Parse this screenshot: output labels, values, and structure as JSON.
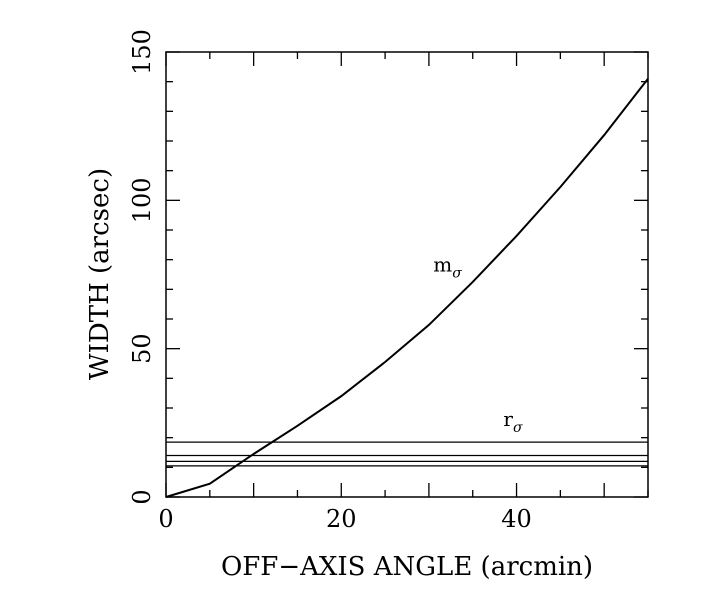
{
  "chart_data": {
    "type": "line",
    "title": "",
    "xlabel": "OFF−AXIS ANGLE (arcmin)",
    "ylabel": "WIDTH (arcsec)",
    "xlim": [
      0,
      55
    ],
    "ylim": [
      0,
      150
    ],
    "xticks": [
      0,
      20,
      40
    ],
    "yticks": [
      0,
      50,
      100,
      150
    ],
    "x_tick_labels": [
      "0",
      "20",
      "40"
    ],
    "y_tick_labels": [
      "0",
      "50",
      "100",
      "150"
    ],
    "grid": false,
    "series": [
      {
        "x": [
          0,
          5,
          10,
          15,
          20,
          25,
          30,
          35,
          40,
          45,
          50,
          55
        ],
        "y": [
          0,
          4.5,
          14.5,
          24,
          34,
          45.5,
          58,
          72.5,
          88,
          104.5,
          122,
          141
        ]
      }
    ],
    "hlines": [
      {
        "y": 10.5
      },
      {
        "y": 12
      },
      {
        "y": 14
      },
      {
        "y": 18.5
      }
    ],
    "annotations": [
      {
        "main": "m",
        "sub": "σ",
        "x": 30.5,
        "y": 76
      },
      {
        "main": "r",
        "sub": "σ",
        "x": 38.5,
        "y": 24
      }
    ]
  }
}
